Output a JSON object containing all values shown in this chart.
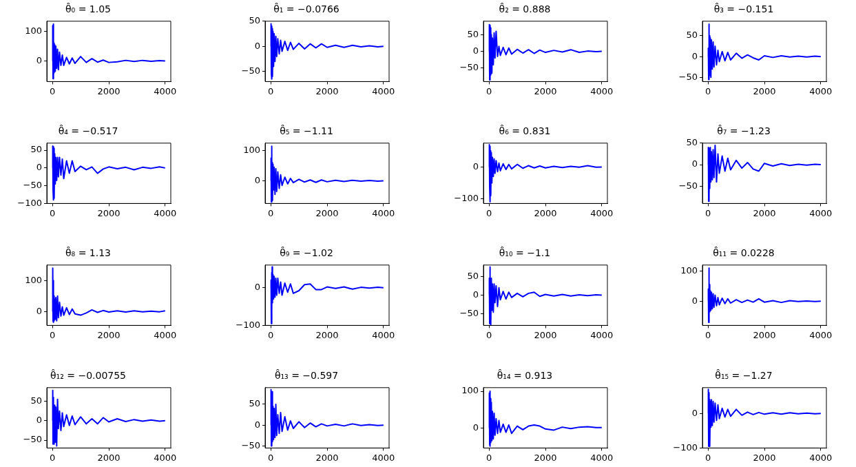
{
  "chart_data": [
    {
      "type": "line",
      "title": "θ̂₀ = 1.05",
      "color": "#0000ff",
      "xlim": [
        -200,
        4200
      ],
      "xticks": [
        0,
        2000,
        4000
      ],
      "ylim": [
        -70,
        135
      ],
      "yticks": [
        0,
        100
      ],
      "x": [
        0,
        10,
        20,
        30,
        40,
        50,
        60,
        80,
        100,
        120,
        150,
        180,
        210,
        250,
        300,
        350,
        400,
        500,
        600,
        700,
        800,
        1000,
        1200,
        1400,
        1600,
        1800,
        2000,
        2300,
        2600,
        2900,
        3200,
        3500,
        3800,
        4000
      ],
      "values": [
        0,
        120,
        -60,
        125,
        -55,
        60,
        -40,
        55,
        -35,
        50,
        -25,
        40,
        -30,
        30,
        -15,
        20,
        -15,
        12,
        -10,
        10,
        -8,
        15,
        -5,
        8,
        -4,
        3,
        -5,
        -3,
        2,
        -2,
        2,
        -1,
        1,
        0
      ]
    },
    {
      "type": "line",
      "title": "θ̂₁ = −0.0766",
      "color": "#0000ff",
      "xlim": [
        -200,
        4200
      ],
      "xticks": [
        0,
        2000,
        4000
      ],
      "ylim": [
        -70,
        50
      ],
      "yticks": [
        -50,
        0,
        50
      ],
      "x": [
        0,
        10,
        20,
        30,
        40,
        50,
        60,
        80,
        100,
        120,
        150,
        180,
        210,
        250,
        300,
        350,
        400,
        500,
        600,
        700,
        800,
        1000,
        1200,
        1400,
        1600,
        1800,
        2000,
        2300,
        2600,
        2900,
        3200,
        3500,
        3800,
        4000
      ],
      "values": [
        0,
        45,
        -55,
        40,
        -65,
        35,
        -60,
        30,
        -40,
        25,
        -30,
        20,
        -20,
        15,
        -15,
        12,
        -10,
        10,
        -8,
        8,
        -6,
        6,
        -5,
        5,
        -3,
        5,
        -2,
        2,
        -2,
        2,
        -1,
        1,
        -1,
        0
      ]
    },
    {
      "type": "line",
      "title": "θ̂₂ = 0.888",
      "color": "#0000ff",
      "xlim": [
        -200,
        4200
      ],
      "xticks": [
        0,
        2000,
        4000
      ],
      "ylim": [
        -90,
        90
      ],
      "yticks": [
        -50,
        0,
        50
      ],
      "x": [
        0,
        10,
        20,
        30,
        40,
        50,
        60,
        80,
        100,
        120,
        150,
        180,
        210,
        250,
        300,
        350,
        400,
        500,
        600,
        700,
        800,
        1000,
        1200,
        1400,
        1600,
        1800,
        2000,
        2300,
        2600,
        2900,
        3200,
        3500,
        3800,
        4000
      ],
      "values": [
        0,
        80,
        -85,
        78,
        -60,
        70,
        -70,
        50,
        -65,
        40,
        -40,
        55,
        -20,
        60,
        -15,
        15,
        -12,
        12,
        -10,
        10,
        -8,
        6,
        -5,
        5,
        -6,
        4,
        -3,
        3,
        -2,
        5,
        -3,
        1,
        -1,
        0
      ]
    },
    {
      "type": "line",
      "title": "θ̂₃ = −0.151",
      "color": "#0000ff",
      "xlim": [
        -200,
        4200
      ],
      "xticks": [
        0,
        2000,
        4000
      ],
      "ylim": [
        -60,
        85
      ],
      "yticks": [
        -50,
        0,
        50
      ],
      "x": [
        0,
        10,
        20,
        30,
        40,
        50,
        60,
        80,
        100,
        120,
        150,
        180,
        210,
        250,
        300,
        350,
        400,
        500,
        600,
        700,
        800,
        1000,
        1200,
        1400,
        1600,
        1800,
        2000,
        2300,
        2600,
        2900,
        3200,
        3500,
        3800,
        4000
      ],
      "values": [
        0,
        20,
        -55,
        78,
        -55,
        50,
        -45,
        45,
        -50,
        40,
        -30,
        35,
        -25,
        25,
        -20,
        15,
        -12,
        12,
        -10,
        10,
        -8,
        8,
        -4,
        4,
        -3,
        -8,
        2,
        -2,
        2,
        -1,
        1,
        -1,
        1,
        0
      ]
    },
    {
      "type": "line",
      "title": "θ̂₄ = −0.517",
      "color": "#0000ff",
      "xlim": [
        -200,
        4200
      ],
      "xticks": [
        0,
        2000,
        4000
      ],
      "ylim": [
        -100,
        70
      ],
      "yticks": [
        -100,
        -50,
        0,
        50
      ],
      "x": [
        0,
        10,
        20,
        30,
        40,
        50,
        60,
        80,
        100,
        120,
        150,
        180,
        210,
        250,
        300,
        350,
        400,
        500,
        600,
        700,
        800,
        1000,
        1200,
        1400,
        1600,
        1800,
        2000,
        2300,
        2600,
        2900,
        3200,
        3500,
        3800,
        4000
      ],
      "values": [
        0,
        62,
        -60,
        60,
        -90,
        55,
        -85,
        40,
        -45,
        30,
        -35,
        30,
        -25,
        30,
        -20,
        25,
        -30,
        20,
        -15,
        20,
        -10,
        5,
        -5,
        3,
        -15,
        -3,
        3,
        -2,
        2,
        -5,
        2,
        -1,
        3,
        0
      ]
    },
    {
      "type": "line",
      "title": "θ̂₅ = −1.11",
      "color": "#0000ff",
      "xlim": [
        -200,
        4200
      ],
      "xticks": [
        0,
        2000,
        4000
      ],
      "ylim": [
        -75,
        125
      ],
      "yticks": [
        0,
        100
      ],
      "x": [
        0,
        10,
        20,
        30,
        40,
        50,
        60,
        80,
        100,
        120,
        150,
        180,
        210,
        250,
        300,
        350,
        400,
        500,
        600,
        700,
        800,
        1000,
        1200,
        1400,
        1600,
        1800,
        2000,
        2300,
        2600,
        2900,
        3200,
        3500,
        3800,
        4000
      ],
      "values": [
        0,
        75,
        -70,
        115,
        -60,
        60,
        -65,
        55,
        -30,
        45,
        -45,
        40,
        -35,
        30,
        -25,
        20,
        -15,
        12,
        -10,
        8,
        -6,
        5,
        -4,
        3,
        -5,
        3,
        -3,
        2,
        -2,
        2,
        -1,
        1,
        -1,
        0
      ]
    },
    {
      "type": "line",
      "title": "θ̂₆ = 0.831",
      "color": "#0000ff",
      "xlim": [
        -200,
        4200
      ],
      "xticks": [
        0,
        2000,
        4000
      ],
      "ylim": [
        -115,
        75
      ],
      "yticks": [
        -100,
        0
      ],
      "x": [
        0,
        10,
        20,
        30,
        40,
        50,
        60,
        80,
        100,
        120,
        150,
        180,
        210,
        250,
        300,
        350,
        400,
        500,
        600,
        700,
        800,
        1000,
        1200,
        1400,
        1600,
        1800,
        2000,
        2300,
        2600,
        2900,
        3200,
        3500,
        3800,
        4000
      ],
      "values": [
        0,
        70,
        -60,
        65,
        -110,
        50,
        -90,
        45,
        -50,
        30,
        -30,
        25,
        -20,
        20,
        -15,
        12,
        -12,
        10,
        -8,
        8,
        -6,
        8,
        -4,
        4,
        -3,
        3,
        -3,
        2,
        -2,
        2,
        -1,
        4,
        -1,
        0
      ]
    },
    {
      "type": "line",
      "title": "θ̂₇ = −1.23",
      "color": "#0000ff",
      "xlim": [
        -200,
        4200
      ],
      "xticks": [
        0,
        2000,
        4000
      ],
      "ylim": [
        -90,
        50
      ],
      "yticks": [
        -50,
        0,
        50
      ],
      "x": [
        0,
        10,
        20,
        30,
        40,
        50,
        60,
        80,
        100,
        120,
        150,
        180,
        210,
        250,
        300,
        350,
        400,
        500,
        600,
        700,
        800,
        1000,
        1200,
        1400,
        1600,
        1800,
        2000,
        2300,
        2600,
        2900,
        3200,
        3500,
        3800,
        4000
      ],
      "values": [
        0,
        40,
        -85,
        38,
        -70,
        35,
        -55,
        40,
        -40,
        30,
        -35,
        35,
        -30,
        45,
        -40,
        25,
        -20,
        20,
        -15,
        15,
        -12,
        10,
        -8,
        5,
        -10,
        -15,
        3,
        -3,
        2,
        -2,
        1,
        -1,
        1,
        0
      ]
    },
    {
      "type": "line",
      "title": "θ̂₈ = 1.13",
      "color": "#0000ff",
      "xlim": [
        -200,
        4200
      ],
      "xticks": [
        0,
        2000,
        4000
      ],
      "ylim": [
        -45,
        150
      ],
      "yticks": [
        0,
        100
      ],
      "x": [
        0,
        10,
        20,
        30,
        40,
        50,
        60,
        80,
        100,
        120,
        150,
        180,
        210,
        250,
        300,
        350,
        400,
        500,
        600,
        700,
        800,
        1000,
        1200,
        1400,
        1600,
        1800,
        2000,
        2300,
        2600,
        2900,
        3200,
        3500,
        3800,
        4000
      ],
      "values": [
        0,
        140,
        -30,
        100,
        -35,
        50,
        -30,
        40,
        -25,
        45,
        -30,
        50,
        -20,
        30,
        -15,
        15,
        -12,
        12,
        -10,
        8,
        -8,
        -12,
        -5,
        5,
        -3,
        3,
        -2,
        2,
        -2,
        2,
        -1,
        1,
        -1,
        2
      ]
    },
    {
      "type": "line",
      "title": "θ̂₉ = −1.02",
      "color": "#0000ff",
      "xlim": [
        -200,
        4200
      ],
      "xticks": [
        0,
        2000,
        4000
      ],
      "ylim": [
        -100,
        60
      ],
      "yticks": [
        -100,
        0
      ],
      "x": [
        0,
        10,
        20,
        30,
        40,
        50,
        60,
        80,
        100,
        120,
        150,
        180,
        210,
        250,
        300,
        350,
        400,
        500,
        600,
        700,
        800,
        1000,
        1200,
        1400,
        1600,
        1800,
        2000,
        2300,
        2600,
        2900,
        3200,
        3500,
        3800,
        4000
      ],
      "values": [
        0,
        20,
        -95,
        40,
        -60,
        55,
        -40,
        35,
        -30,
        30,
        -25,
        25,
        -20,
        25,
        -15,
        15,
        -20,
        12,
        -12,
        10,
        -15,
        -8,
        8,
        10,
        -5,
        -5,
        2,
        -2,
        2,
        -4,
        1,
        -1,
        1,
        0
      ]
    },
    {
      "type": "line",
      "title": "θ̂₁₀ = −1.1",
      "color": "#0000ff",
      "xlim": [
        -200,
        4200
      ],
      "xticks": [
        0,
        2000,
        4000
      ],
      "ylim": [
        -80,
        80
      ],
      "yticks": [
        -50,
        0,
        50
      ],
      "x": [
        0,
        10,
        20,
        30,
        40,
        50,
        60,
        80,
        100,
        120,
        150,
        180,
        210,
        250,
        300,
        350,
        400,
        500,
        600,
        700,
        800,
        1000,
        1200,
        1400,
        1600,
        1800,
        2000,
        2300,
        2600,
        2900,
        3200,
        3500,
        3800,
        4000
      ],
      "values": [
        0,
        45,
        -75,
        75,
        -75,
        40,
        -80,
        45,
        -40,
        30,
        -45,
        30,
        -20,
        25,
        -30,
        20,
        -12,
        10,
        -10,
        8,
        -6,
        5,
        -4,
        5,
        8,
        -3,
        2,
        -2,
        2,
        -2,
        1,
        -1,
        1,
        0
      ]
    },
    {
      "type": "line",
      "title": "θ̂₁₁ = 0.0228",
      "color": "#0000ff",
      "xlim": [
        -200,
        4200
      ],
      "xticks": [
        0,
        2000,
        4000
      ],
      "ylim": [
        -80,
        120
      ],
      "yticks": [
        0,
        100
      ],
      "x": [
        0,
        10,
        20,
        30,
        40,
        50,
        60,
        80,
        100,
        120,
        150,
        180,
        210,
        250,
        300,
        350,
        400,
        500,
        600,
        700,
        800,
        1000,
        1200,
        1400,
        1600,
        1800,
        2000,
        2300,
        2600,
        2900,
        3200,
        3500,
        3800,
        4000
      ],
      "values": [
        0,
        40,
        -70,
        110,
        -40,
        55,
        -35,
        35,
        -30,
        30,
        -25,
        25,
        -20,
        20,
        -15,
        12,
        -12,
        10,
        -8,
        8,
        -6,
        5,
        -4,
        4,
        -3,
        8,
        -3,
        2,
        -4,
        2,
        -1,
        1,
        -1,
        0
      ]
    },
    {
      "type": "line",
      "title": "θ̂₁₂ = −0.00755",
      "color": "#0000ff",
      "xlim": [
        -200,
        4200
      ],
      "xticks": [
        0,
        2000,
        4000
      ],
      "ylim": [
        -70,
        85
      ],
      "yticks": [
        -50,
        0,
        50
      ],
      "x": [
        0,
        10,
        20,
        30,
        40,
        50,
        60,
        80,
        100,
        120,
        150,
        180,
        210,
        250,
        300,
        350,
        400,
        500,
        600,
        700,
        800,
        1000,
        1200,
        1400,
        1600,
        1800,
        2000,
        2300,
        2600,
        2900,
        3200,
        3500,
        3800,
        4000
      ],
      "values": [
        0,
        78,
        -60,
        60,
        -55,
        30,
        -60,
        40,
        -55,
        35,
        -65,
        55,
        -20,
        25,
        -25,
        20,
        -15,
        15,
        -12,
        12,
        -10,
        10,
        -8,
        5,
        -8,
        8,
        -3,
        5,
        -2,
        3,
        -1,
        2,
        -1,
        0
      ]
    },
    {
      "type": "line",
      "title": "θ̂₁₃ = −0.597",
      "color": "#0000ff",
      "xlim": [
        -200,
        4200
      ],
      "xticks": [
        0,
        2000,
        4000
      ],
      "ylim": [
        -55,
        90
      ],
      "yticks": [
        -50,
        0,
        50
      ],
      "x": [
        0,
        10,
        20,
        30,
        40,
        50,
        60,
        80,
        100,
        120,
        150,
        180,
        210,
        250,
        300,
        350,
        400,
        500,
        600,
        700,
        800,
        1000,
        1200,
        1400,
        1600,
        1800,
        2000,
        2300,
        2600,
        2900,
        3200,
        3500,
        3800,
        4000
      ],
      "values": [
        0,
        85,
        -50,
        70,
        -45,
        80,
        -40,
        45,
        -35,
        40,
        -30,
        50,
        -25,
        25,
        -20,
        30,
        -15,
        20,
        -12,
        10,
        -8,
        8,
        -6,
        5,
        -4,
        3,
        -2,
        2,
        -2,
        3,
        -1,
        1,
        -1,
        0
      ]
    },
    {
      "type": "line",
      "title": "θ̂₁₄ = 0.913",
      "color": "#0000ff",
      "xlim": [
        -200,
        4200
      ],
      "xticks": [
        0,
        2000,
        4000
      ],
      "ylim": [
        -55,
        110
      ],
      "yticks": [
        0,
        100
      ],
      "x": [
        0,
        10,
        20,
        30,
        40,
        50,
        60,
        80,
        100,
        120,
        150,
        180,
        210,
        250,
        300,
        350,
        400,
        500,
        600,
        700,
        800,
        1000,
        1200,
        1400,
        1600,
        1800,
        2000,
        2300,
        2600,
        2900,
        3200,
        3500,
        3800,
        4000
      ],
      "values": [
        0,
        95,
        -45,
        100,
        -50,
        80,
        -40,
        70,
        -35,
        45,
        -30,
        40,
        -20,
        25,
        -15,
        20,
        -12,
        10,
        -12,
        8,
        -15,
        5,
        -5,
        5,
        8,
        5,
        -3,
        -6,
        2,
        -2,
        2,
        3,
        1,
        1
      ]
    },
    {
      "type": "line",
      "title": "θ̂₁₅ = −1.27",
      "color": "#0000ff",
      "xlim": [
        -200,
        4200
      ],
      "xticks": [
        0,
        2000,
        4000
      ],
      "ylim": [
        -100,
        75
      ],
      "yticks": [
        -100,
        0
      ],
      "x": [
        0,
        10,
        20,
        30,
        40,
        50,
        60,
        80,
        100,
        120,
        150,
        180,
        210,
        250,
        300,
        350,
        400,
        500,
        600,
        700,
        800,
        1000,
        1200,
        1400,
        1600,
        1800,
        2000,
        2300,
        2600,
        2900,
        3200,
        3500,
        3800,
        4000
      ],
      "values": [
        0,
        70,
        -95,
        60,
        -95,
        40,
        -95,
        35,
        -40,
        40,
        -35,
        35,
        -25,
        30,
        -20,
        25,
        -15,
        15,
        -10,
        12,
        -8,
        12,
        -5,
        4,
        -3,
        3,
        -2,
        2,
        -2,
        2,
        -1,
        1,
        -1,
        0
      ]
    }
  ]
}
